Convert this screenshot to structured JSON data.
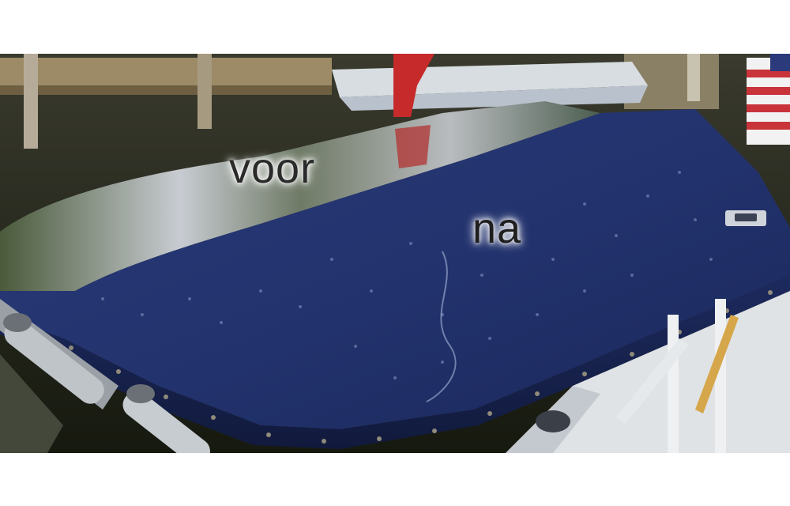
{
  "labels": {
    "before": "voor",
    "after": "na"
  },
  "colors": {
    "background": "#ffffff",
    "cover_navy": "#1f2f6a",
    "water": "#1c2019",
    "dock_wood": "#8c7a55"
  }
}
